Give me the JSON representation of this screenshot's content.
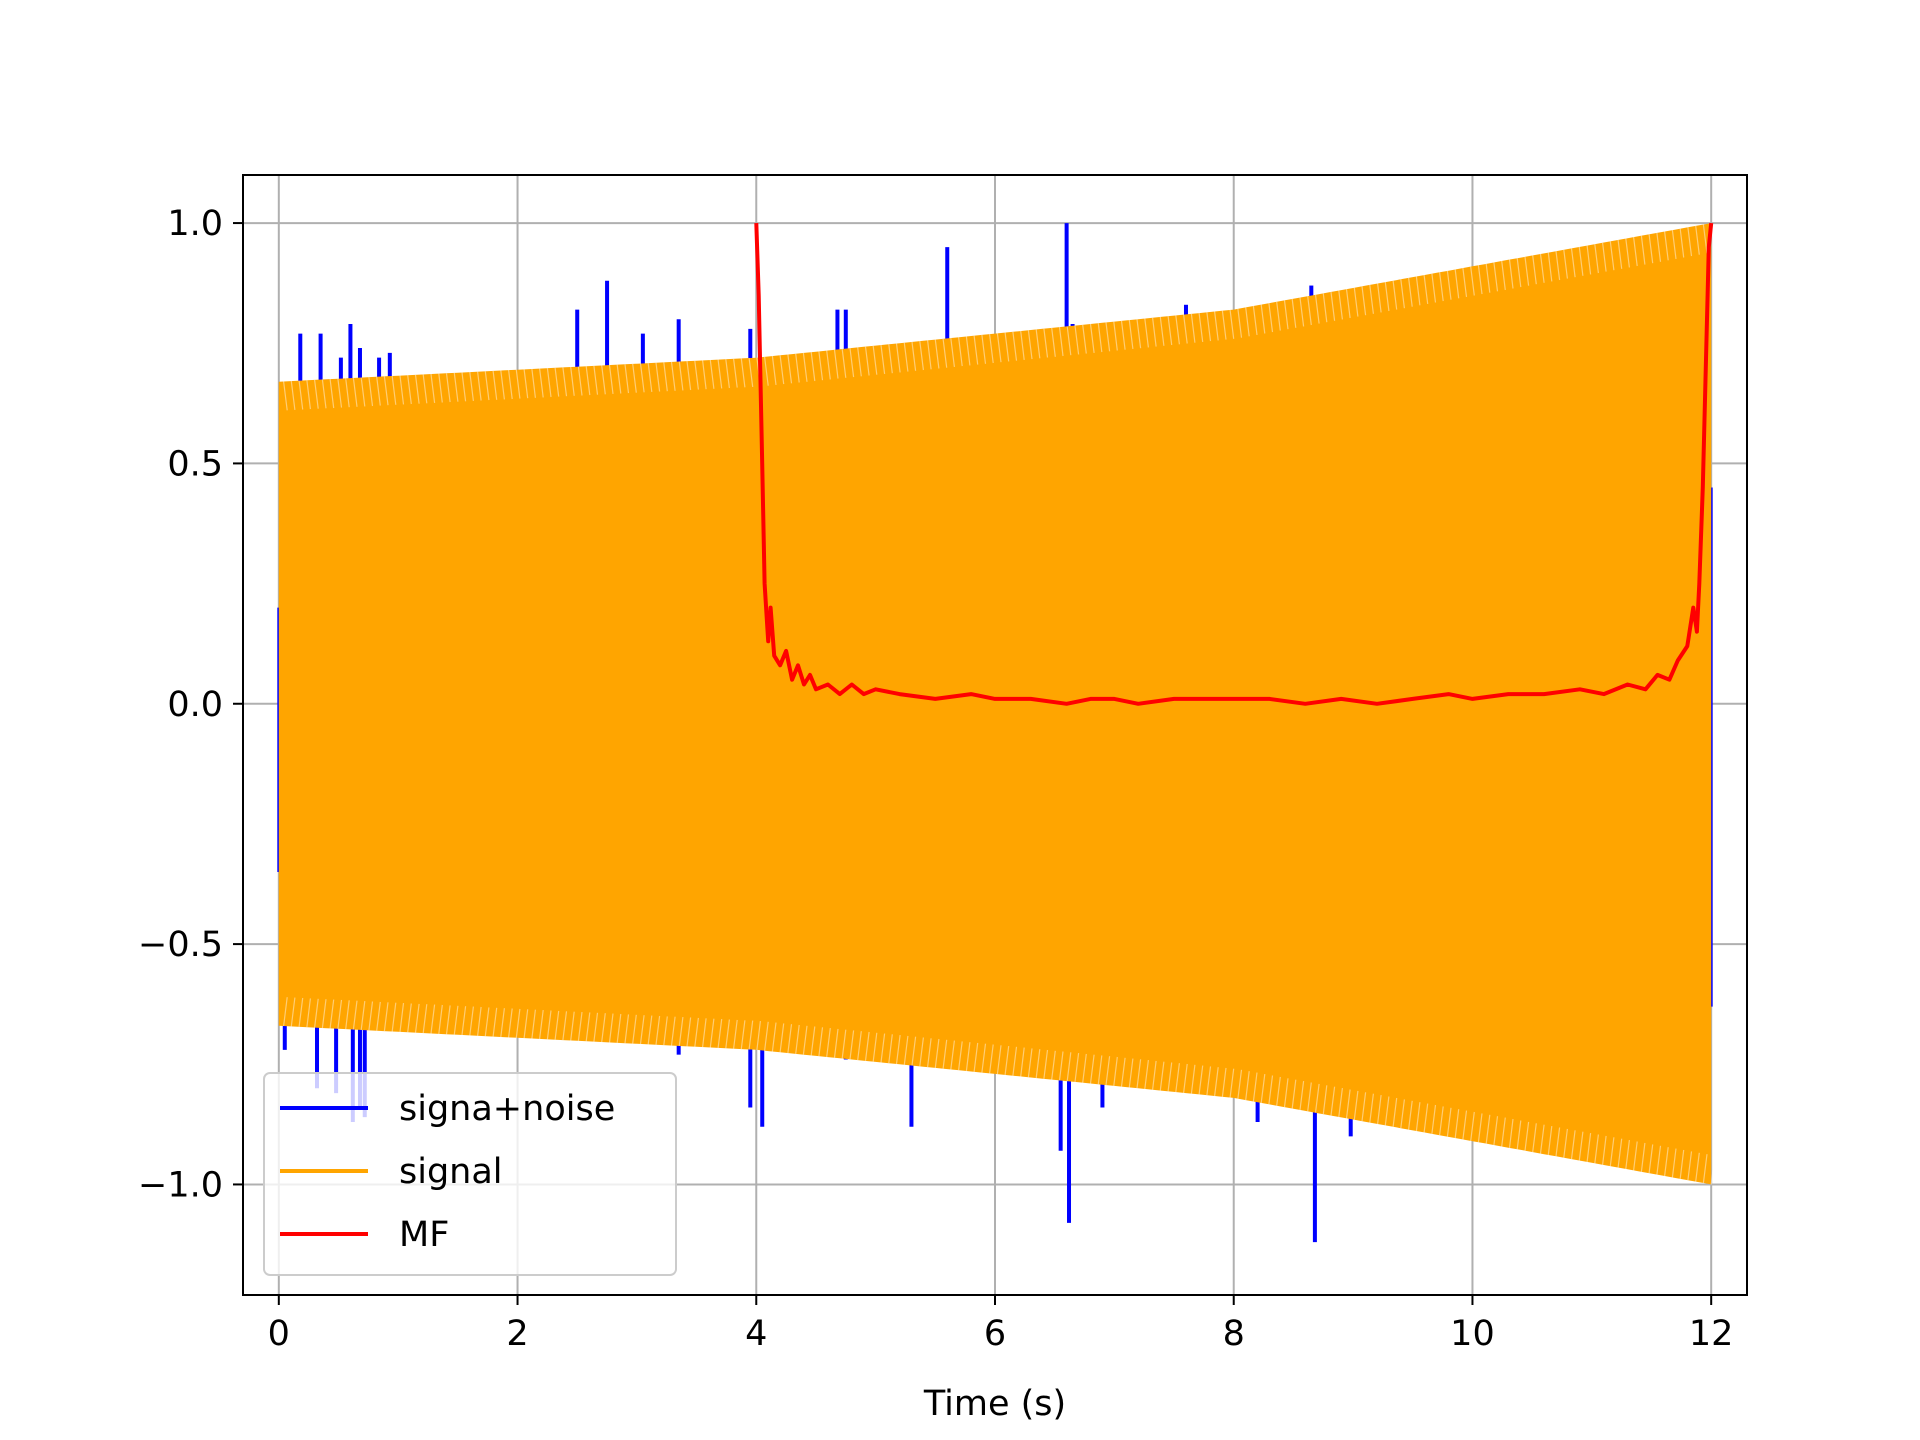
{
  "chart_data": {
    "type": "line",
    "title": "",
    "xlabel": "Time (s)",
    "ylabel": "",
    "xlim": [
      -0.3,
      12.3
    ],
    "ylim": [
      -1.23,
      1.1
    ],
    "grid": true,
    "legend_placement": "lower-left",
    "x_ticks": [
      0,
      2,
      4,
      6,
      8,
      10,
      12
    ],
    "x_tick_labels": [
      "0",
      "2",
      "4",
      "6",
      "8",
      "10",
      "12"
    ],
    "y_ticks": [
      1.0,
      0.5,
      0.0,
      -0.5,
      -1.0
    ],
    "y_tick_labels": [
      "1.0",
      "0.5",
      "0.0",
      "−0.5",
      "−1.0"
    ],
    "colors": {
      "noise": "#0000ff",
      "signal": "#ffa500",
      "mf": "#ff0000",
      "grid": "#b0b0b0"
    },
    "series": [
      {
        "name": "signa+noise",
        "color": "#0000ff",
        "x_range": [
          0,
          12
        ],
        "envelope": {
          "x": [
            0,
            4,
            8,
            12
          ],
          "upper": [
            0.67,
            0.72,
            0.82,
            1.0
          ],
          "lower": [
            -0.67,
            -0.72,
            -0.82,
            -1.0
          ]
        },
        "spikes_up": [
          {
            "x": 0.18,
            "y": 0.77
          },
          {
            "x": 0.35,
            "y": 0.77
          },
          {
            "x": 0.52,
            "y": 0.72
          },
          {
            "x": 0.6,
            "y": 0.79
          },
          {
            "x": 0.68,
            "y": 0.74
          },
          {
            "x": 0.84,
            "y": 0.72
          },
          {
            "x": 0.93,
            "y": 0.73
          },
          {
            "x": 2.5,
            "y": 0.82
          },
          {
            "x": 2.75,
            "y": 0.88
          },
          {
            "x": 3.05,
            "y": 0.77
          },
          {
            "x": 3.35,
            "y": 0.8
          },
          {
            "x": 3.95,
            "y": 0.78
          },
          {
            "x": 4.68,
            "y": 0.82
          },
          {
            "x": 4.75,
            "y": 0.82
          },
          {
            "x": 5.6,
            "y": 0.95
          },
          {
            "x": 6.6,
            "y": 1.0
          },
          {
            "x": 6.65,
            "y": 0.79
          },
          {
            "x": 7.6,
            "y": 0.83
          },
          {
            "x": 8.65,
            "y": 0.87
          },
          {
            "x": 8.95,
            "y": 0.86
          },
          {
            "x": 9.05,
            "y": 0.84
          }
        ],
        "spikes_down": [
          {
            "x": 0.05,
            "y": -0.72
          },
          {
            "x": 0.32,
            "y": -0.8
          },
          {
            "x": 0.48,
            "y": -0.81
          },
          {
            "x": 0.62,
            "y": -0.87
          },
          {
            "x": 0.68,
            "y": -0.84
          },
          {
            "x": 0.72,
            "y": -0.86
          },
          {
            "x": 3.35,
            "y": -0.73
          },
          {
            "x": 3.95,
            "y": -0.84
          },
          {
            "x": 4.05,
            "y": -0.88
          },
          {
            "x": 4.75,
            "y": -0.74
          },
          {
            "x": 5.3,
            "y": -0.88
          },
          {
            "x": 6.55,
            "y": -0.93
          },
          {
            "x": 6.62,
            "y": -1.08
          },
          {
            "x": 6.9,
            "y": -0.84
          },
          {
            "x": 8.2,
            "y": -0.87
          },
          {
            "x": 8.68,
            "y": -1.12
          },
          {
            "x": 8.98,
            "y": -0.9
          }
        ]
      },
      {
        "name": "signal",
        "color": "#ffa500",
        "x_range": [
          0,
          12
        ],
        "envelope": {
          "x": [
            0,
            4,
            8,
            12
          ],
          "upper": [
            0.67,
            0.72,
            0.82,
            1.0
          ],
          "lower": [
            -0.67,
            -0.72,
            -0.82,
            -1.0
          ]
        }
      },
      {
        "name": "MF",
        "color": "#ff0000",
        "x": [
          4.0,
          4.02,
          4.05,
          4.07,
          4.1,
          4.12,
          4.15,
          4.2,
          4.25,
          4.3,
          4.35,
          4.4,
          4.45,
          4.5,
          4.6,
          4.7,
          4.8,
          4.9,
          5.0,
          5.2,
          5.5,
          5.8,
          6.0,
          6.3,
          6.6,
          6.8,
          7.0,
          7.2,
          7.5,
          7.8,
          8.0,
          8.3,
          8.6,
          8.9,
          9.2,
          9.5,
          9.8,
          10.0,
          10.3,
          10.6,
          10.9,
          11.1,
          11.3,
          11.45,
          11.55,
          11.65,
          11.72,
          11.8,
          11.85,
          11.88,
          11.9,
          11.93,
          11.96,
          11.98,
          12.0
        ],
        "y": [
          1.0,
          0.85,
          0.5,
          0.25,
          0.13,
          0.2,
          0.1,
          0.08,
          0.11,
          0.05,
          0.08,
          0.04,
          0.06,
          0.03,
          0.04,
          0.02,
          0.04,
          0.02,
          0.03,
          0.02,
          0.01,
          0.02,
          0.01,
          0.01,
          0.0,
          0.01,
          0.01,
          0.0,
          0.01,
          0.01,
          0.01,
          0.01,
          0.0,
          0.01,
          0.0,
          0.01,
          0.02,
          0.01,
          0.02,
          0.02,
          0.03,
          0.02,
          0.04,
          0.03,
          0.06,
          0.05,
          0.09,
          0.12,
          0.2,
          0.15,
          0.25,
          0.45,
          0.75,
          0.95,
          1.0
        ]
      }
    ]
  }
}
